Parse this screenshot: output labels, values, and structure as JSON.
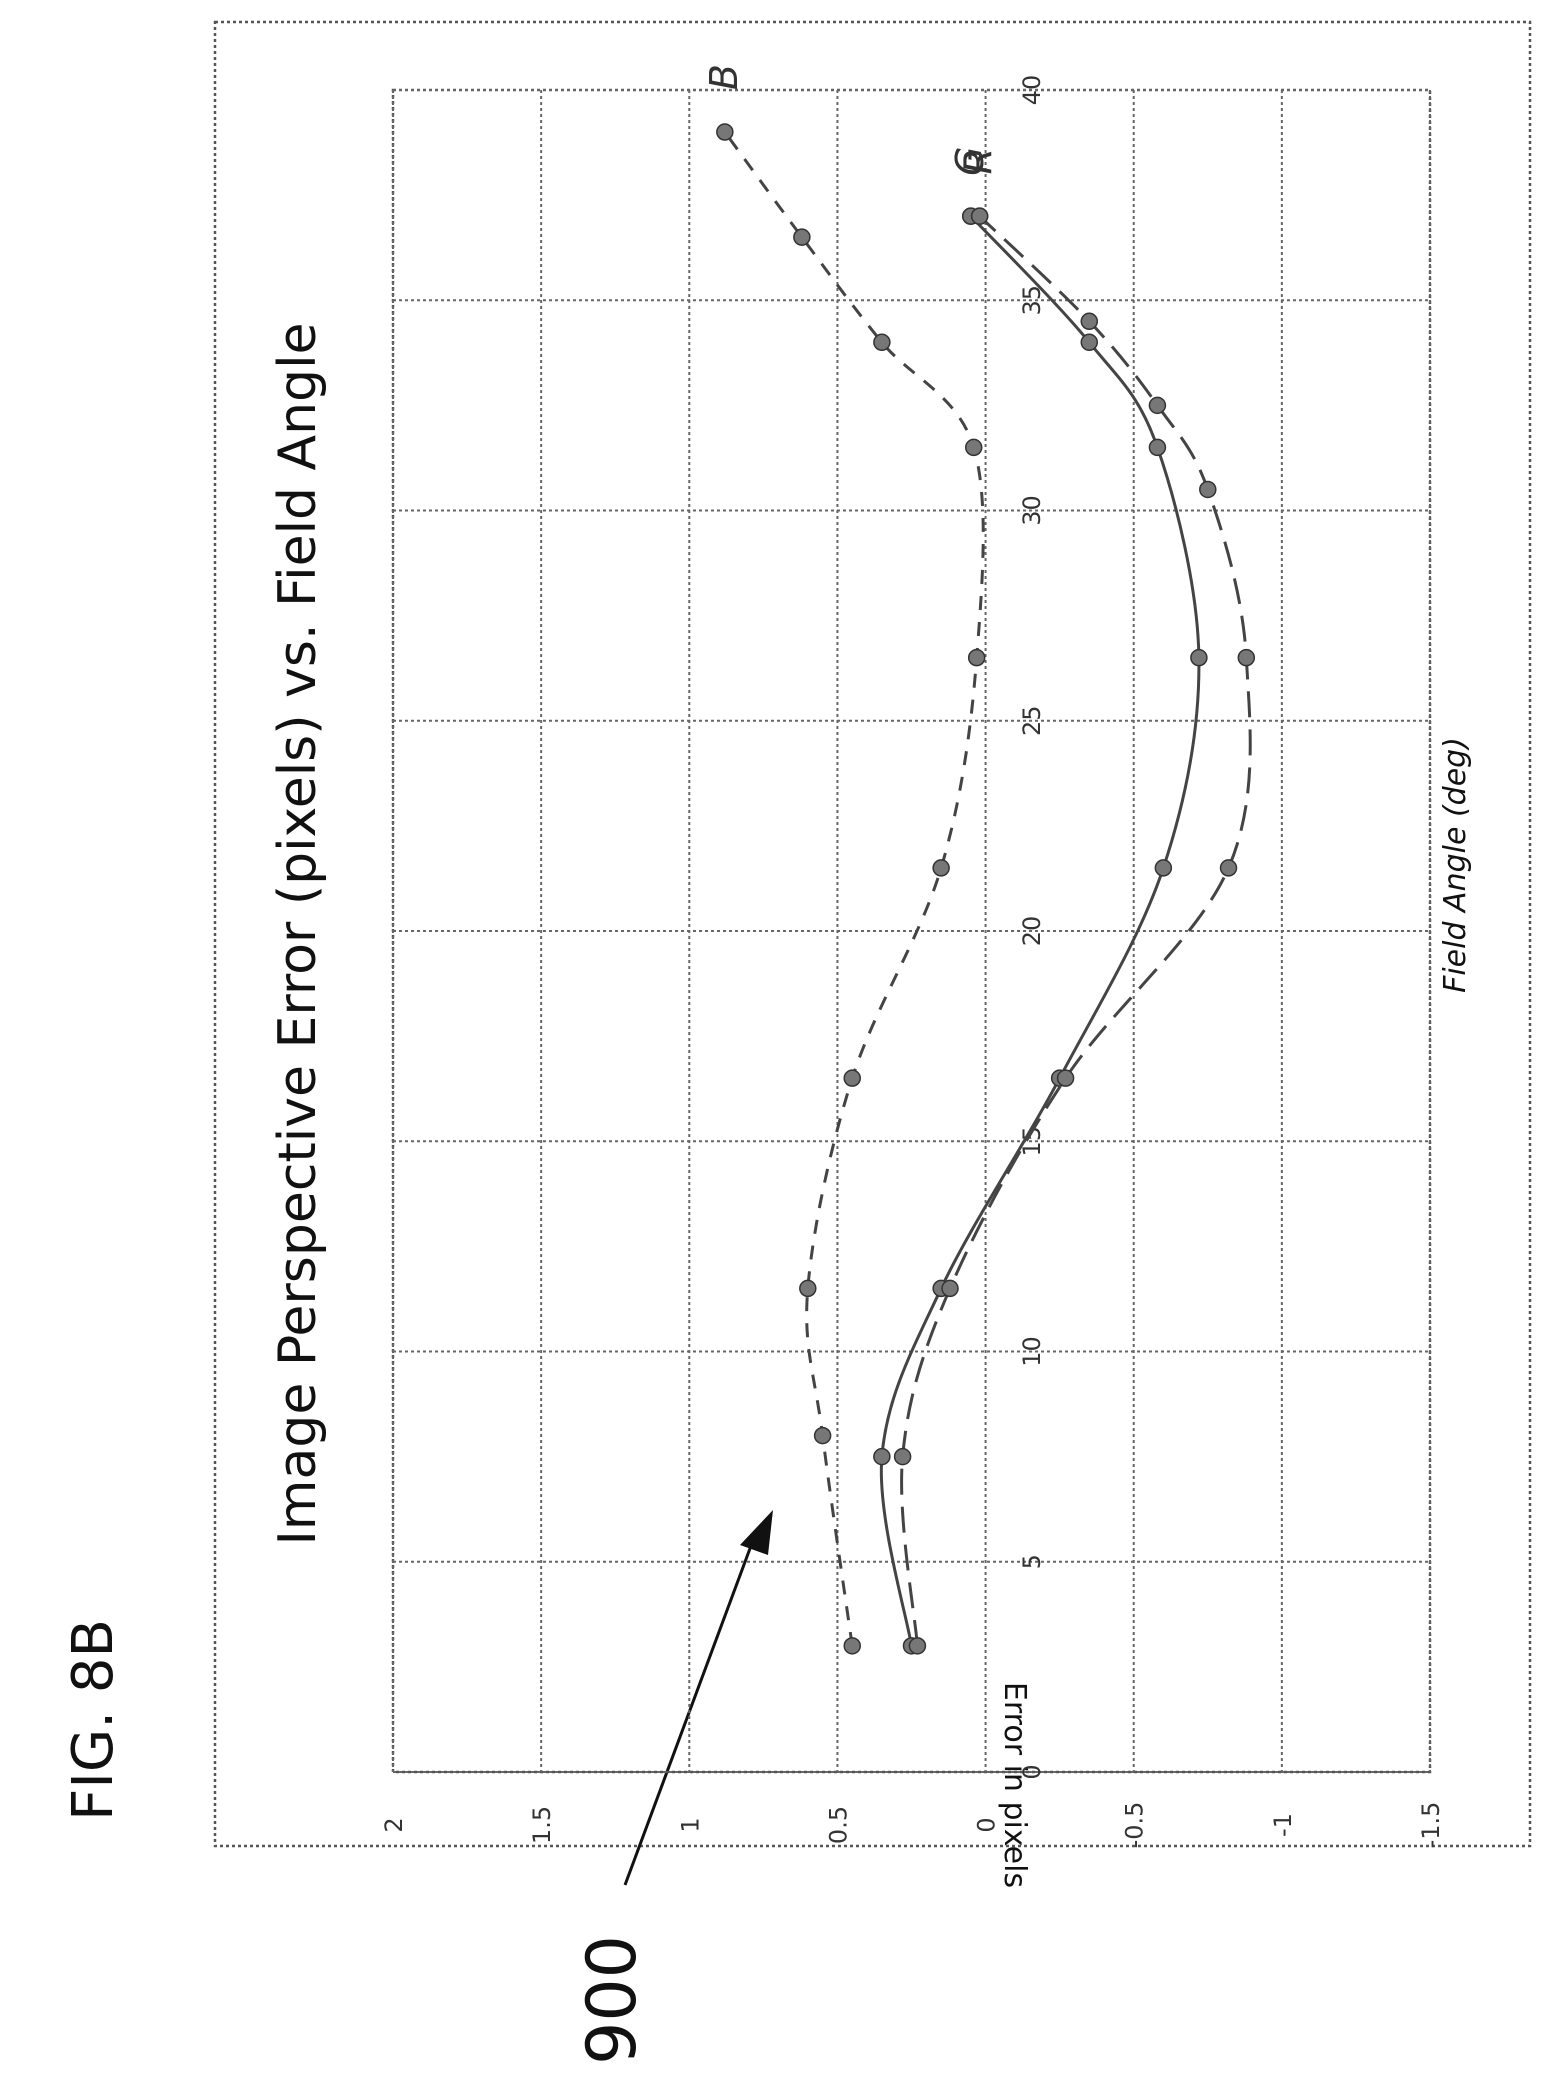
{
  "figure": {
    "label": "FIG. 8B",
    "callout": "900"
  },
  "chart_data": {
    "type": "line",
    "title": "Image Perspective Error (pixels) vs. Field Angle",
    "xlabel": "Field Angle (deg)",
    "ylabel": "Error in pixels",
    "xlim": [
      0,
      40
    ],
    "ylim": [
      -1.5,
      2
    ],
    "xticks": [
      0,
      5,
      10,
      15,
      20,
      25,
      30,
      35,
      40
    ],
    "yticks": [
      2,
      1.5,
      1,
      0.5,
      0,
      -0.5,
      -1,
      -1.5
    ],
    "grid": true,
    "series": [
      {
        "name": "B",
        "style": "dashed",
        "x": [
          3,
          8,
          11.5,
          16.5,
          21.5,
          26.5,
          31.5,
          34,
          36.5,
          39
        ],
        "y": [
          0.45,
          0.55,
          0.6,
          0.45,
          0.15,
          0.03,
          0.04,
          0.35,
          0.62,
          0.88
        ]
      },
      {
        "name": "G",
        "style": "solid",
        "x": [
          3,
          7.5,
          11.5,
          16.5,
          21.5,
          26.5,
          31.5,
          34,
          37
        ],
        "y": [
          0.25,
          0.35,
          0.15,
          -0.25,
          -0.6,
          -0.72,
          -0.58,
          -0.35,
          0.05
        ]
      },
      {
        "name": "R",
        "style": "long-dashed",
        "x": [
          3,
          7.5,
          11.5,
          16.5,
          21.5,
          26.5,
          30.5,
          32.5,
          34.5,
          37
        ],
        "y": [
          0.23,
          0.28,
          0.12,
          -0.27,
          -0.82,
          -0.88,
          -0.75,
          -0.58,
          -0.35,
          0.02
        ]
      }
    ]
  }
}
